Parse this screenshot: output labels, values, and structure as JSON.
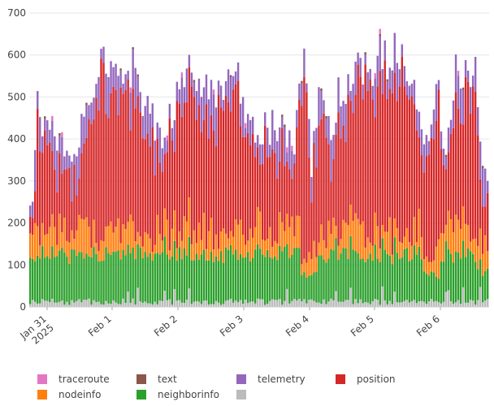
{
  "chart_data": {
    "type": "bar",
    "stacked": true,
    "ylim": [
      0,
      700
    ],
    "y_ticks": [
      0,
      100,
      200,
      300,
      400,
      500,
      600,
      700
    ],
    "x_tick_labels": [
      "Jan 31\n2025",
      "Feb 1",
      "Feb 2",
      "Feb 3",
      "Feb 4",
      "Feb 5",
      "Feb 6"
    ],
    "grid": true,
    "legend_position": "bottom",
    "series": [
      {
        "name": "traceroute",
        "color": "#e377c2"
      },
      {
        "name": "text",
        "color": "#8c564b"
      },
      {
        "name": "telemetry",
        "color": "#9467bd"
      },
      {
        "name": "position",
        "color": "#d62728"
      },
      {
        "name": "nodeinfo",
        "color": "#ff7f0e"
      },
      {
        "name": "neighborinfo",
        "color": "#2ca02c"
      },
      {
        "name": "",
        "color": "#bbbbbb"
      }
    ],
    "totals_sample": {
      "Jan 31": 470,
      "Feb 1": 630,
      "Feb 2": 590,
      "Feb 3": 540,
      "Feb 4": 600,
      "Feb 5": 660,
      "Feb 6": 580
    }
  }
}
